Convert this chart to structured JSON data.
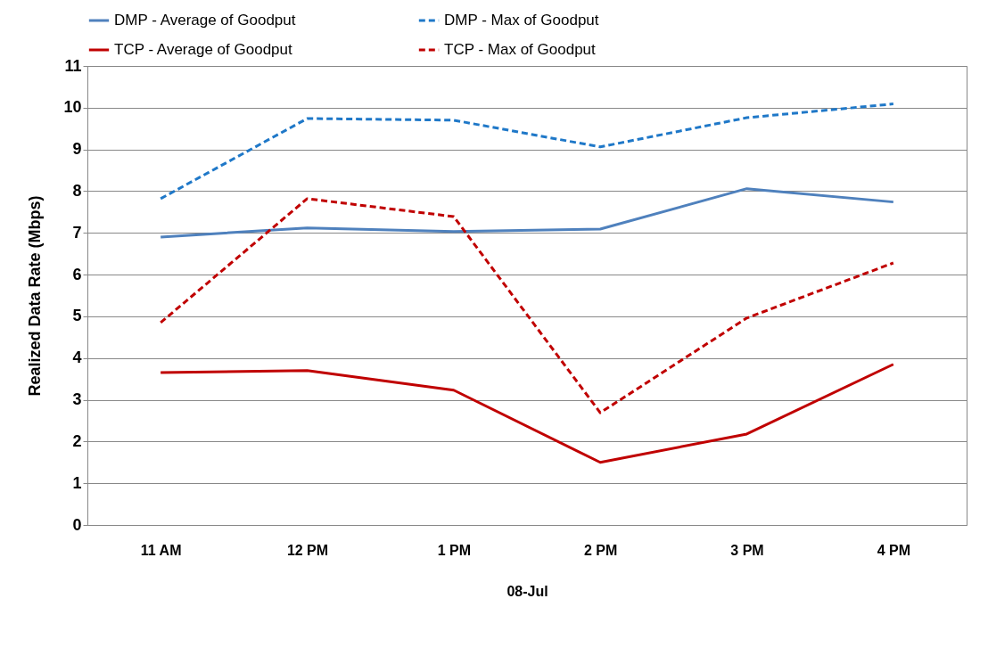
{
  "chart_data": {
    "type": "line",
    "ylabel": "Realized Data Rate (Mbps)",
    "xlabel": "08-Jul",
    "categories": [
      "11 AM",
      "12 PM",
      "1 PM",
      "2 PM",
      "3 PM",
      "4 PM"
    ],
    "ylim": [
      0,
      11
    ],
    "yticks": [
      0,
      1,
      2,
      3,
      4,
      5,
      6,
      7,
      8,
      9,
      10,
      11
    ],
    "grid": "y",
    "legend": "top",
    "marker": "none",
    "series": [
      {
        "name": "DMP - Average of Goodput",
        "color": "#4f81bd",
        "line_style": "solid",
        "values": [
          6.9,
          7.12,
          7.03,
          7.09,
          8.06,
          7.74
        ]
      },
      {
        "name": "DMP - Max of Goodput",
        "color": "#1f78c8",
        "line_style": "dashed",
        "values": [
          7.82,
          9.74,
          9.7,
          9.06,
          9.76,
          10.09
        ]
      },
      {
        "name": "TCP - Average of Goodput",
        "color": "#c00000",
        "line_style": "solid",
        "values": [
          3.65,
          3.7,
          3.23,
          1.5,
          2.18,
          3.85
        ]
      },
      {
        "name": "TCP - Max of Goodput",
        "color": "#c00000",
        "line_style": "dashed",
        "values": [
          4.85,
          7.82,
          7.39,
          2.69,
          4.96,
          6.28
        ]
      }
    ]
  }
}
